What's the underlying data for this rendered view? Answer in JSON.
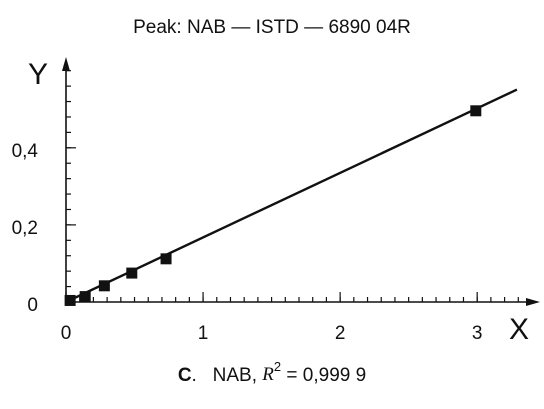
{
  "chart_data": {
    "type": "scatter",
    "title": "Peak: NAB — ISTD — 6890 04R",
    "xlabel": "X",
    "ylabel": "Y",
    "series": [
      {
        "name": null,
        "color": "#111111",
        "x": [
          0.03,
          0.14,
          0.28,
          0.48,
          0.73,
          2.99
        ],
        "values": [
          0.004,
          0.014,
          0.042,
          0.075,
          0.112,
          0.496
        ]
      }
    ],
    "fit_line": {
      "color": "#111111",
      "x": [
        0,
        3.29
      ],
      "values": [
        0,
        0.551
      ]
    },
    "xlim": [
      0,
      3.4
    ],
    "ylim": [
      0,
      0.62
    ],
    "xticks": [
      0,
      1,
      2,
      3
    ],
    "yticks": [
      0,
      {
        "value": 0.2,
        "label": "0,2"
      },
      {
        "value": 0.4,
        "label": "0,4"
      }
    ],
    "x_minor_divisions": 10,
    "y_minor_divisions": 5,
    "caption": [
      "C",
      ".   NAB, ",
      "R",
      "2",
      " = 0,999 9"
    ]
  }
}
